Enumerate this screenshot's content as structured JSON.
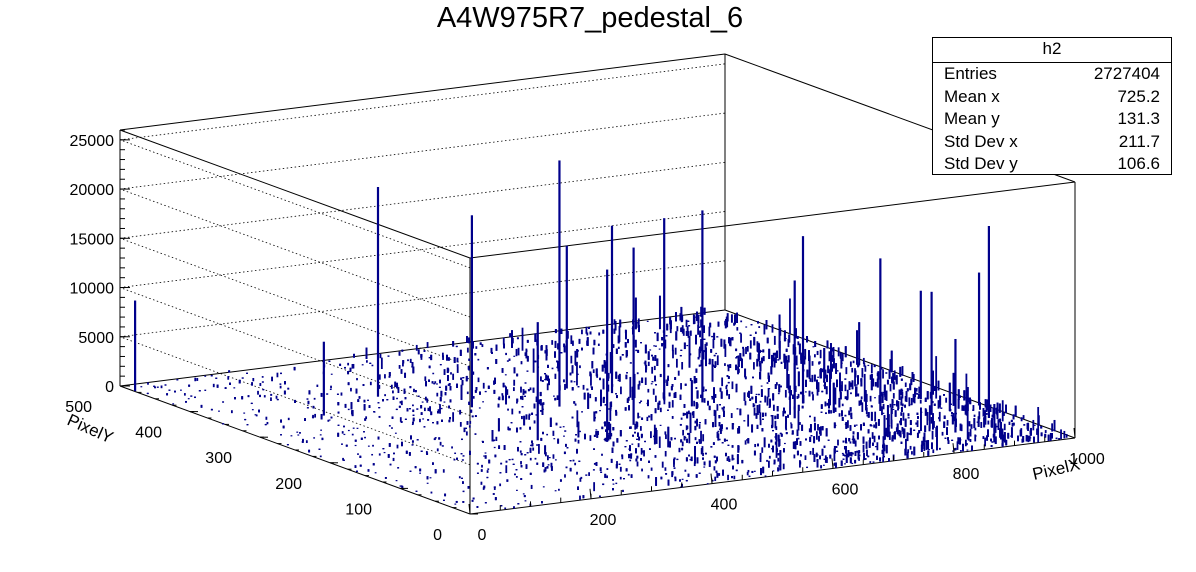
{
  "title": "A4W975R7_pedestal_6",
  "stats_box": {
    "name": "h2",
    "rows": [
      {
        "label": "Entries",
        "value": "2727404"
      },
      {
        "label": "Mean x",
        "value": "725.2"
      },
      {
        "label": "Mean y",
        "value": "131.3"
      },
      {
        "label": "Std Dev x",
        "value": "211.7"
      },
      {
        "label": "Std Dev y",
        "value": "106.6"
      }
    ]
  },
  "chart_data": {
    "type": "lego3d",
    "title": "A4W975R7_pedestal_6",
    "xlabel": "PixelX",
    "ylabel": "PixelY",
    "zlabel": "",
    "xlim": [
      0,
      1000
    ],
    "ylim": [
      0,
      500
    ],
    "zlim": [
      0,
      26000
    ],
    "x_ticks": [
      "0",
      "200",
      "400",
      "600",
      "800",
      "1000"
    ],
    "y_ticks": [
      "0",
      "100",
      "200",
      "300",
      "400",
      "500"
    ],
    "z_ticks": [
      "0",
      "5000",
      "10000",
      "15000",
      "20000",
      "25000"
    ],
    "grid": true,
    "bar_color": "#00008b",
    "spikes": [
      {
        "x": 0,
        "y": 480,
        "z": 9200
      },
      {
        "x": 280,
        "y": 375,
        "z": 21300
      },
      {
        "x": 150,
        "y": 340,
        "z": 7500
      },
      {
        "x": 360,
        "y": 310,
        "z": 19500
      },
      {
        "x": 470,
        "y": 280,
        "z": 25000
      },
      {
        "x": 540,
        "y": 330,
        "z": 14500
      },
      {
        "x": 580,
        "y": 300,
        "z": 17000
      },
      {
        "x": 620,
        "y": 260,
        "z": 18500
      },
      {
        "x": 660,
        "y": 240,
        "z": 19500
      },
      {
        "x": 500,
        "y": 200,
        "z": 18000
      },
      {
        "x": 410,
        "y": 160,
        "z": 17500
      },
      {
        "x": 330,
        "y": 190,
        "z": 12000
      },
      {
        "x": 720,
        "y": 160,
        "z": 14000
      },
      {
        "x": 780,
        "y": 200,
        "z": 17000
      },
      {
        "x": 850,
        "y": 150,
        "z": 15500
      },
      {
        "x": 900,
        "y": 120,
        "z": 12500
      },
      {
        "x": 960,
        "y": 90,
        "z": 19500
      },
      {
        "x": 990,
        "y": 130,
        "z": 13500
      },
      {
        "x": 940,
        "y": 170,
        "z": 11000
      },
      {
        "x": 870,
        "y": 60,
        "z": 9500
      }
    ]
  }
}
